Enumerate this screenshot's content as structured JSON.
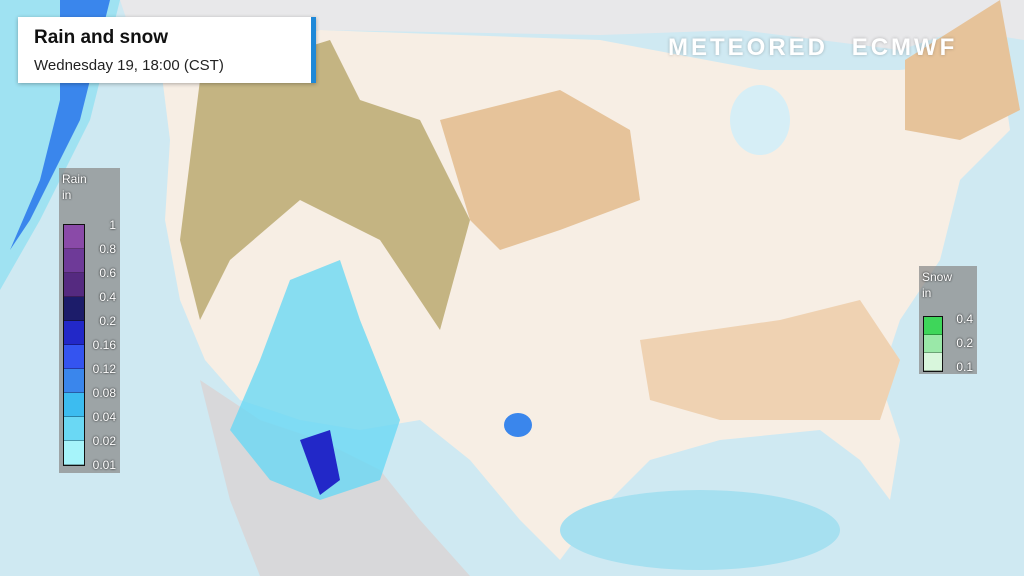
{
  "header": {
    "title": "Rain and snow",
    "subtitle": "Wednesday 19, 18:00 (CST)"
  },
  "logos": [
    "METEORED",
    "ECMWF"
  ],
  "rain_legend": {
    "title": "Rain",
    "unit": "in",
    "levels": [
      "1",
      "0.8",
      "0.6",
      "0.4",
      "0.2",
      "0.16",
      "0.12",
      "0.08",
      "0.04",
      "0.02",
      "0.01"
    ],
    "colors": [
      "#8a4aa8",
      "#6e3a98",
      "#552a80",
      "#1c1c6a",
      "#2228c8",
      "#3454f0",
      "#3a86ec",
      "#3cbcf0",
      "#6ad8f4",
      "#a6f4fa"
    ]
  },
  "snow_legend": {
    "title": "Snow",
    "unit": "in",
    "levels": [
      "0.4",
      "0.2",
      "0.1"
    ],
    "colors": [
      "#3ed65a",
      "#9ae8a8",
      "#d8f6dc"
    ]
  },
  "map_colors": {
    "ocean": "#cfe9f2",
    "land": "#f7eee4",
    "dry": "#e8c9a4",
    "mountain": "#b8a36a",
    "borders": "#ffffff"
  }
}
